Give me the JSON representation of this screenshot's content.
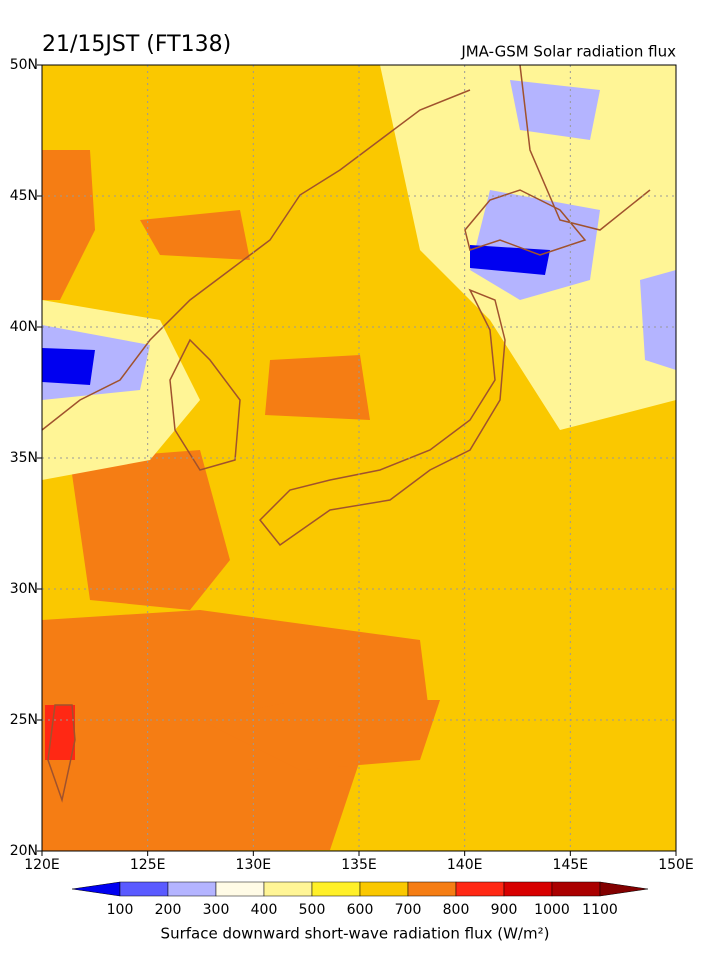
{
  "chart_data": {
    "type": "map",
    "title": "21/15JST (FT138)",
    "subtitle": "JMA-GSM Solar radiation flux",
    "xlim": [
      120,
      150
    ],
    "ylim": [
      20,
      50
    ],
    "xticks": [
      {
        "value": 120,
        "label": "120E"
      },
      {
        "value": 125,
        "label": "125E"
      },
      {
        "value": 130,
        "label": "130E"
      },
      {
        "value": 135,
        "label": "135E"
      },
      {
        "value": 140,
        "label": "140E"
      },
      {
        "value": 145,
        "label": "145E"
      },
      {
        "value": 150,
        "label": "150E"
      }
    ],
    "yticks": [
      {
        "value": 20,
        "label": "20N"
      },
      {
        "value": 25,
        "label": "25N"
      },
      {
        "value": 30,
        "label": "30N"
      },
      {
        "value": 35,
        "label": "35N"
      },
      {
        "value": 40,
        "label": "40N"
      },
      {
        "value": 45,
        "label": "45N"
      },
      {
        "value": 50,
        "label": "50N"
      }
    ],
    "grid": true,
    "colorbar": {
      "levels": [
        100,
        200,
        300,
        400,
        500,
        600,
        700,
        800,
        900,
        1000,
        1100
      ],
      "colors": [
        "#0000f0",
        "#5a5aff",
        "#b4b4ff",
        "#fffbe6",
        "#fff596",
        "#fff028",
        "#fac800",
        "#f57d14",
        "#ff2814",
        "#d70000",
        "#aa0000",
        "#820000"
      ],
      "label": "Surface downward short-wave radiation flux (W/m²)"
    }
  }
}
